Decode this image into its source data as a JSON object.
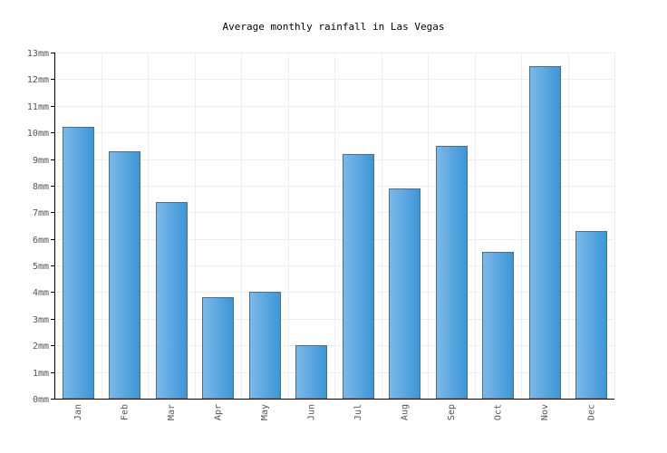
{
  "chart_data": {
    "type": "bar",
    "title": "Average monthly rainfall in Las Vegas",
    "xlabel": "",
    "ylabel": "",
    "categories": [
      "Jan",
      "Feb",
      "Mar",
      "Apr",
      "May",
      "Jun",
      "Jul",
      "Aug",
      "Sep",
      "Oct",
      "Nov",
      "Dec"
    ],
    "values": [
      10.2,
      9.3,
      7.4,
      3.8,
      4.0,
      2.0,
      9.2,
      7.9,
      9.5,
      5.5,
      12.5,
      6.3
    ],
    "unit": "mm",
    "ylim": [
      0,
      13
    ],
    "yticks": [
      "0mm",
      "1mm",
      "2mm",
      "3mm",
      "4mm",
      "5mm",
      "6mm",
      "7mm",
      "8mm",
      "9mm",
      "10mm",
      "11mm",
      "12mm",
      "13mm"
    ],
    "grid": true,
    "legend": "none",
    "colors": {
      "bar_light": "#7db9ea",
      "bar_dark": "#3a96d6",
      "bar_border": "#4d6f8f"
    }
  }
}
